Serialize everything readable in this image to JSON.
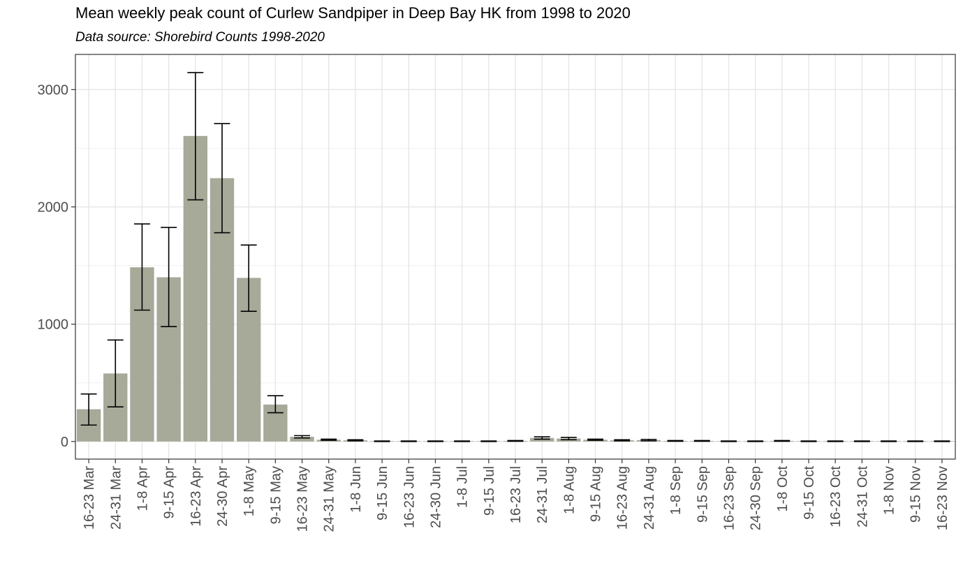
{
  "chart_data": {
    "type": "bar",
    "title": "Mean weekly peak count of Curlew Sandpiper in Deep Bay HK from 1998 to 2020",
    "subtitle": "Data source: Shorebird Counts 1998-2020",
    "xlabel": "",
    "ylabel": "",
    "ylim": [
      -150,
      3300
    ],
    "yticks": [
      0,
      1000,
      2000,
      3000
    ],
    "grid": true,
    "legend": "none",
    "bar_color": "#a7a999",
    "categories": [
      "16-23 Mar",
      "24-31 Mar",
      "1-8 Apr",
      "9-15 Apr",
      "16-23 Apr",
      "24-30 Apr",
      "1-8 May",
      "9-15 May",
      "16-23 May",
      "24-31 May",
      "1-8 Jun",
      "9-15 Jun",
      "16-23 Jun",
      "24-30 Jun",
      "1-8 Jul",
      "9-15 Jul",
      "16-23 Jul",
      "24-31 Jul",
      "1-8 Aug",
      "9-15 Aug",
      "16-23 Aug",
      "24-31 Aug",
      "1-8 Sep",
      "9-15 Sep",
      "16-23 Sep",
      "24-30 Sep",
      "1-8 Oct",
      "9-15 Oct",
      "16-23 Oct",
      "24-31 Oct",
      "1-8 Nov",
      "9-15 Nov",
      "16-23 Nov"
    ],
    "values": [
      275,
      580,
      1485,
      1400,
      2605,
      2245,
      1395,
      315,
      40,
      15,
      10,
      2,
      2,
      2,
      2,
      2,
      5,
      30,
      25,
      15,
      10,
      12,
      5,
      5,
      2,
      2,
      5,
      2,
      2,
      2,
      2,
      2,
      2
    ],
    "error_low": [
      140,
      295,
      1120,
      980,
      2060,
      1780,
      1110,
      245,
      30,
      10,
      5,
      0,
      0,
      0,
      0,
      0,
      2,
      20,
      15,
      10,
      5,
      6,
      2,
      2,
      0,
      0,
      2,
      0,
      0,
      0,
      0,
      0,
      0
    ],
    "error_high": [
      405,
      865,
      1855,
      1825,
      3145,
      2710,
      1675,
      390,
      50,
      20,
      15,
      4,
      4,
      4,
      4,
      4,
      8,
      40,
      35,
      20,
      15,
      18,
      8,
      8,
      4,
      4,
      8,
      4,
      4,
      4,
      4,
      4,
      4
    ]
  }
}
